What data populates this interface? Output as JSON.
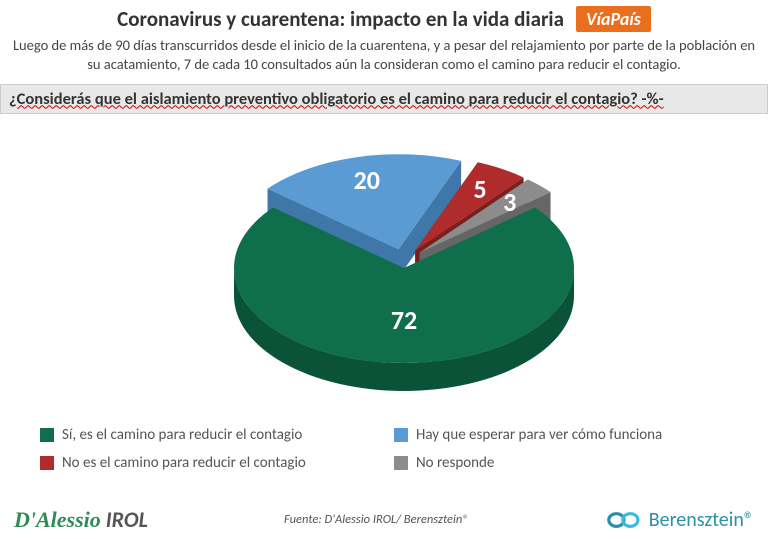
{
  "header": {
    "title": "Coronavirus y cuarentena: impacto en la vida diaria",
    "badge": "VíaPaís",
    "subtitle": "Luego de más de 90 días transcurridos desde el inicio de la cuarentena, y a pesar del relajamiento por parte de la población en su acatamiento, 7 de cada 10 consultados aún la consideran como el camino para reducir el contagio."
  },
  "question": "¿Considerás que el aislamiento preventivo obligatorio es el camino para reducir el contagio? -%-",
  "chart": {
    "type": "pie-3d-exploded",
    "background_color": "#ffffff",
    "label_fontsize": 26,
    "label_color": "#ffffff",
    "slices": [
      {
        "label": "Sí, es el camino para reducir el contagio",
        "value": 72,
        "color": "#0f6e4c",
        "side_color": "#0a5238",
        "exploded": false
      },
      {
        "label": "Hay que esperar para ver cómo funciona",
        "value": 20,
        "color": "#5a9bd4",
        "side_color": "#3f77a8",
        "exploded": true
      },
      {
        "label": "No es el camino para reducir el contagio",
        "value": 5,
        "color": "#b02c2c",
        "side_color": "#7a1e1e",
        "exploded": true
      },
      {
        "label": "No responde",
        "value": 3,
        "color": "#8c8c8c",
        "side_color": "#666666",
        "exploded": true
      }
    ]
  },
  "legend": {
    "fontsize": 15,
    "text_color": "#555555"
  },
  "footer": {
    "source": "Fuente: D'Alessio IROL/ Berensztein®",
    "logo_left_a": "D'Alessio",
    "logo_left_b": " IROL",
    "logo_right": "Berensztein®"
  },
  "colors": {
    "badge_bg": "#e96f1f",
    "question_bg": "#e8e8e8"
  }
}
